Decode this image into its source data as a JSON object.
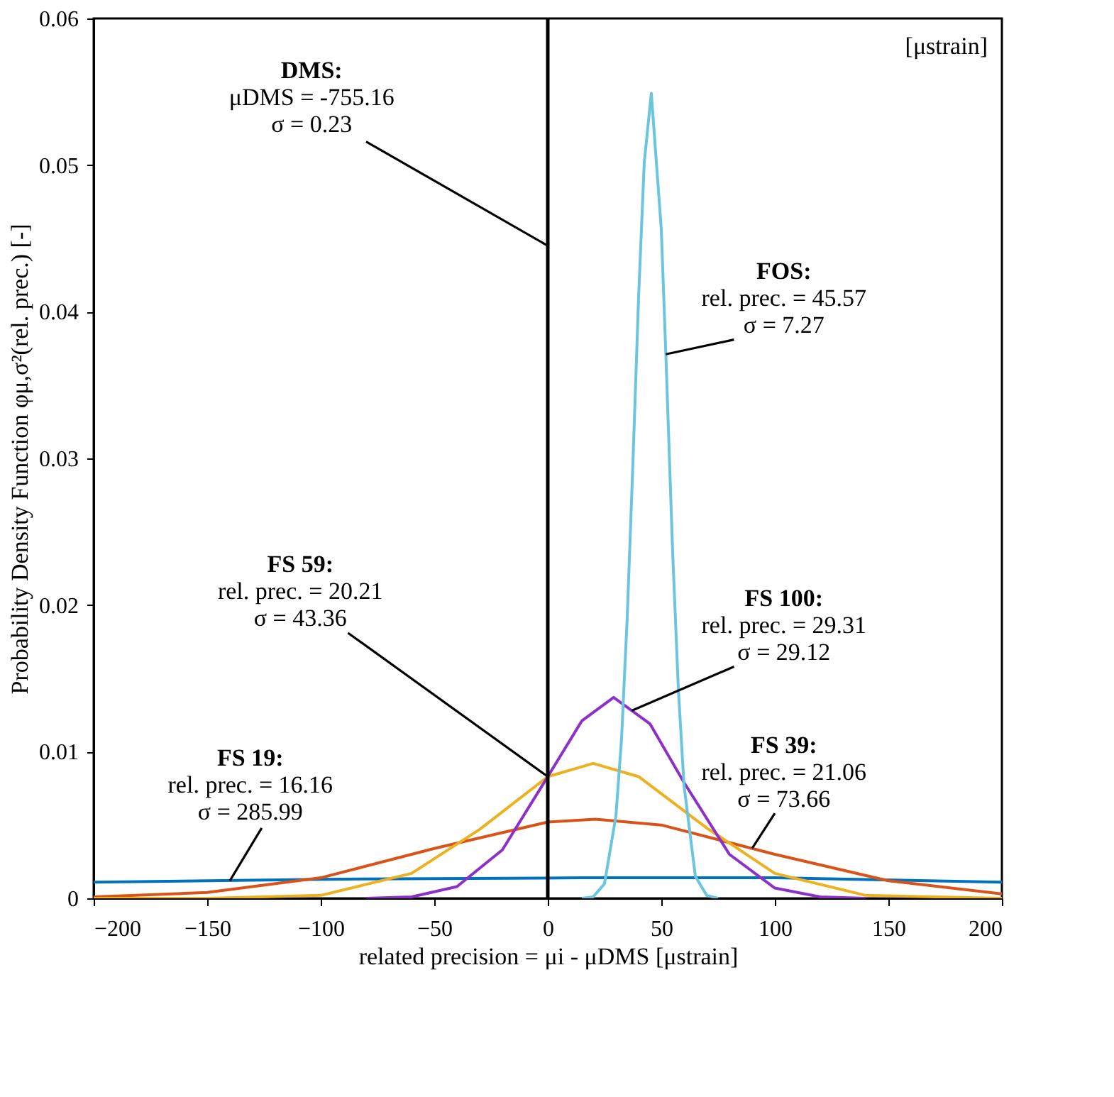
{
  "chart_data": {
    "type": "line",
    "xlabel": "related precision = μi - μDMS [μstrain]",
    "ylabel": "Probability Density Function φμ,σ²(rel. prec.) [-]",
    "xlim": [
      -200,
      200
    ],
    "xticks": [
      -200,
      -150,
      -100,
      -50,
      0,
      50,
      100,
      150,
      200
    ],
    "ylim": [
      0,
      0.06
    ],
    "yticks": [
      0,
      0.01,
      0.02,
      0.03,
      0.04,
      0.05,
      0.06
    ],
    "grid": false,
    "legend": false,
    "marker": "none",
    "line_style": "solid",
    "series": [
      {
        "color": "#0072bd",
        "x": [
          -200,
          -100,
          16,
          100,
          200
        ],
        "values": [
          0.0011,
          0.0013,
          0.0014,
          0.0014,
          0.0011
        ]
      },
      {
        "color": "#d95319",
        "x": [
          -200,
          -150,
          -100,
          -50,
          0,
          21,
          50,
          100,
          150,
          200
        ],
        "values": [
          0.0001,
          0.0004,
          0.0014,
          0.0034,
          0.0052,
          0.0054,
          0.005,
          0.003,
          0.0012,
          0.0003
        ]
      },
      {
        "color": "#edb120",
        "x": [
          -200,
          -150,
          -100,
          -60,
          -30,
          0,
          20,
          40,
          70,
          100,
          140,
          200
        ],
        "values": [
          0,
          0,
          0.0002,
          0.0017,
          0.0047,
          0.0083,
          0.0092,
          0.0083,
          0.0048,
          0.0017,
          0.0002,
          0
        ]
      },
      {
        "color": "#8e30c8",
        "x": [
          -80,
          -60,
          -40,
          -20,
          0,
          15,
          29,
          45,
          60,
          80,
          100,
          120,
          140
        ],
        "values": [
          0,
          0.0001,
          0.0008,
          0.0033,
          0.0083,
          0.0121,
          0.0137,
          0.0119,
          0.0079,
          0.003,
          0.0007,
          0.0001,
          0
        ]
      },
      {
        "color": "#6cc5df",
        "x": [
          15,
          20,
          25,
          30,
          32.5,
          35,
          37.5,
          40,
          42.5,
          45.6,
          50,
          52,
          55,
          57.5,
          60,
          65,
          70,
          75
        ],
        "values": [
          0,
          0.0001,
          0.001,
          0.0056,
          0.0109,
          0.0192,
          0.0297,
          0.041,
          0.0502,
          0.0549,
          0.0456,
          0.0371,
          0.0236,
          0.0143,
          0.0077,
          0.0015,
          0.0002,
          0
        ]
      }
    ],
    "ref_lines": [
      {
        "axis": "x",
        "value": 0,
        "color": "#000000"
      }
    ],
    "annotations": [
      {
        "text": "DMS:\nμDMS = -755.16\nσ = 0.23",
        "x": 0,
        "y": 0.0445
      },
      {
        "text": "FOS:\nrel. prec. = 45.57\nσ = 7.27",
        "x": 52,
        "y": 0.0371
      },
      {
        "text": "FS 100:\nrel. prec. = 29.31\nσ = 29.12",
        "x": 37,
        "y": 0.0128
      },
      {
        "text": "FS 59:\nrel. prec. = 20.21\nσ = 43.36",
        "x": 0,
        "y": 0.0083
      },
      {
        "text": "FS 39:\nrel. prec. = 21.06\nσ = 73.66",
        "x": 90,
        "y": 0.0034
      },
      {
        "text": "FS 19:\nrel. prec. = 16.16\nσ = 285.99",
        "x": -140,
        "y": 0.0012
      },
      "[μstrain]"
    ]
  }
}
